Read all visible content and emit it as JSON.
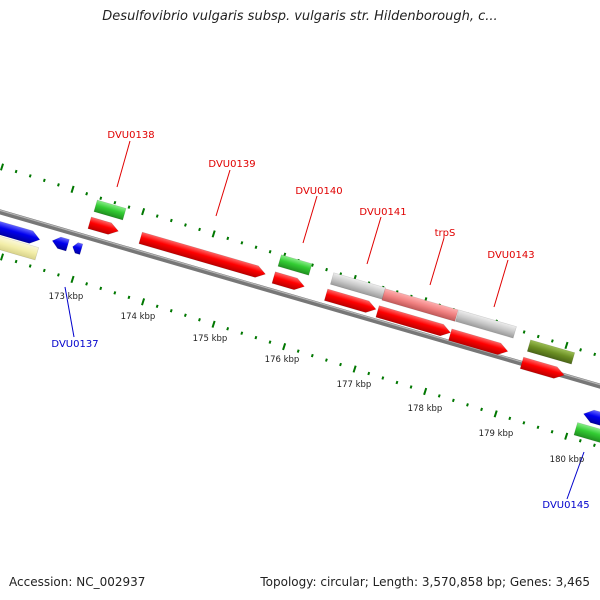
{
  "header": {
    "title": "Desulfovibrio vulgaris subsp. vulgaris str. Hildenborough, c..."
  },
  "footer": {
    "accession": "Accession: NC_002937",
    "summary": "Topology: circular; Length: 3,570,858 bp; Genes: 3,465"
  },
  "map": {
    "kbp_labels": [
      "173 kbp",
      "174 kbp",
      "175 kbp",
      "176 kbp",
      "177 kbp",
      "178 kbp",
      "179 kbp",
      "180 kbp"
    ],
    "gene_labels_top": [
      "DVU0138",
      "DVU0139",
      "DVU0140",
      "DVU0141",
      "trpS",
      "DVU0143"
    ],
    "gene_labels_bottom": [
      "DVU0137",
      "DVU0145"
    ]
  },
  "colors": {
    "cds_forward": "#ff0000",
    "gene_green": "#33cc33",
    "cds_reverse": "#0000ee",
    "pale_yellow": "#f3eeaa",
    "gray_feature": "#c8c8c8",
    "pink_feature": "#f08080",
    "olive_feature": "#6b8e23",
    "backbone": "#888888",
    "tick_green": "#007700"
  }
}
